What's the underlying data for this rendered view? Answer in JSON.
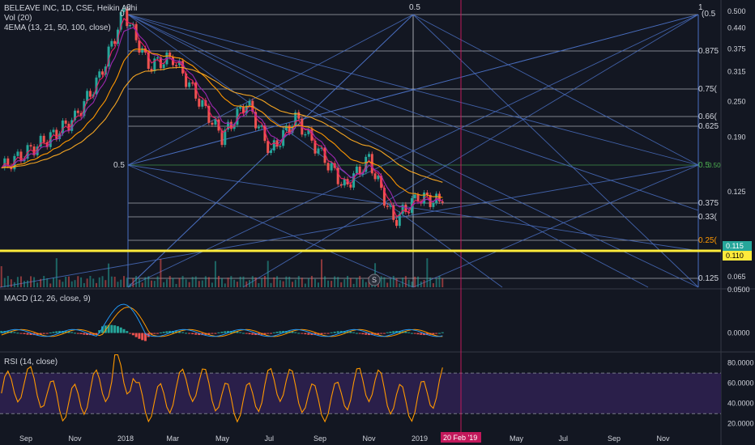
{
  "header": {
    "title": "BELEAVE INC, 1D, CSE, Heikin Ashi",
    "volume": "Vol (20)",
    "ema": "4EMA (13, 21, 50, 100, close)"
  },
  "colors": {
    "background": "#131722",
    "up": "#26a69a",
    "down": "#ef5350",
    "grid": "#2a2e39",
    "fib_line": "#4a6fc1",
    "white_line": "#c9ccd3",
    "highlight": "#ffeb3b",
    "cursor": "#c2185b",
    "macd": "#2196f3",
    "signal": "#ff9800",
    "rsi": "#ff9800",
    "rsi_band": "#2a1f4a"
  },
  "chart_data": [
    {
      "type": "candlestick",
      "name": "price",
      "scale": "log",
      "ylim": [
        0.06,
        0.5
      ],
      "y_ticks": [
        "0.500",
        "0.440",
        "0.375",
        "0.315",
        "0.250",
        "0.190",
        "0.125",
        "0.065"
      ],
      "x_ticks": [
        "Sep",
        "Nov",
        "2018",
        "Mar",
        "May",
        "Jul",
        "Sep",
        "Nov",
        "2019",
        "Mar",
        "May",
        "Jul",
        "Sep",
        "Nov"
      ],
      "cursor_label": "20 Feb '19",
      "last_price_labels": [
        "0.115",
        "0.110"
      ],
      "fib_labels": [
        {
          "text": "1",
          "color": "#d1d4dc"
        },
        {
          "text": "0.5",
          "color": "#d1d4dc"
        },
        {
          "text": "0",
          "color": "#d1d4dc"
        },
        {
          "text": "0.875",
          "color": "#d1d4dc"
        },
        {
          "text": "0.75(",
          "color": "#d1d4dc"
        },
        {
          "text": "0.66(",
          "color": "#d1d4dc"
        },
        {
          "text": "0.625",
          "color": "#d1d4dc"
        },
        {
          "text": "0.5",
          "color": "#4caf50"
        },
        {
          "text": "0.375",
          "color": "#d1d4dc"
        },
        {
          "text": "0.33(",
          "color": "#d1d4dc"
        },
        {
          "text": "0.25(",
          "color": "#ff9800"
        },
        {
          "text": "0.125",
          "color": "#d1d4dc"
        }
      ],
      "top_labels": [
        "0",
        "0.5",
        "1",
        "(0.5"
      ],
      "left_label": "0.5",
      "right_green_label": "0.5",
      "small_label": "0.50",
      "events_badge": "S",
      "key_points": [
        {
          "date": "2017-08",
          "close": 0.15
        },
        {
          "date": "2017-10",
          "close": 0.19
        },
        {
          "date": "2017-11",
          "close": 0.22
        },
        {
          "date": "2017-12",
          "close": 0.3
        },
        {
          "date": "2018-01",
          "close": 0.5
        },
        {
          "date": "2018-02",
          "close": 0.33
        },
        {
          "date": "2018-03",
          "close": 0.35
        },
        {
          "date": "2018-05",
          "close": 0.19
        },
        {
          "date": "2018-06",
          "close": 0.25
        },
        {
          "date": "2018-07",
          "close": 0.17
        },
        {
          "date": "2018-08",
          "close": 0.22
        },
        {
          "date": "2018-10",
          "close": 0.13
        },
        {
          "date": "2018-11",
          "close": 0.16
        },
        {
          "date": "2018-12",
          "close": 0.1
        },
        {
          "date": "2019-01",
          "close": 0.12
        },
        {
          "date": "2019-02",
          "close": 0.115
        }
      ]
    },
    {
      "type": "line",
      "name": "MACD (12, 26, close, 9)",
      "y_ticks": [
        "0.0500",
        "0.0000"
      ],
      "ylim": [
        -0.02,
        0.05
      ]
    },
    {
      "type": "line",
      "name": "RSI (14, close)",
      "y_ticks": [
        "80.0000",
        "60.0000",
        "40.0000",
        "20.0000"
      ],
      "ylim": [
        15,
        90
      ],
      "bands": [
        70,
        30
      ]
    }
  ]
}
